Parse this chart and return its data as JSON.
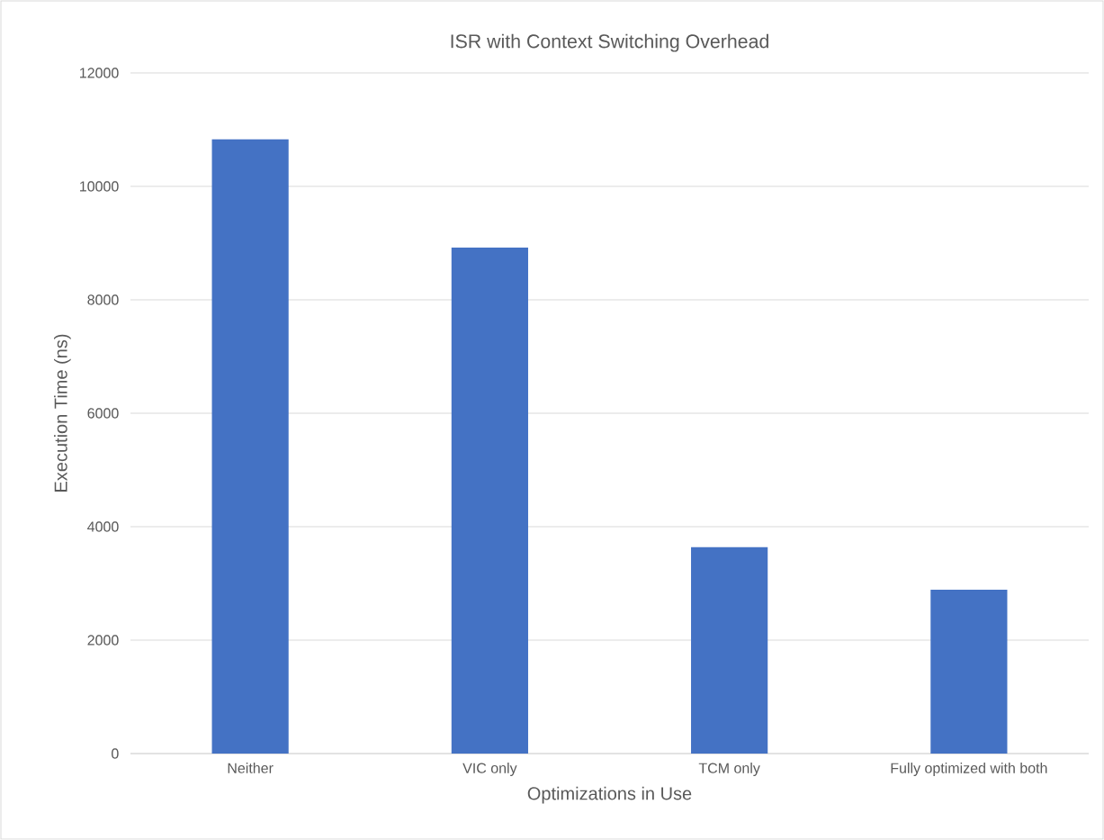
{
  "chart_data": {
    "type": "bar",
    "title": "ISR with Context Switching Overhead",
    "xlabel": "Optimizations in Use",
    "ylabel": "Execution Time (ns)",
    "categories": [
      "Neither",
      "VIC only",
      "TCM only",
      "Fully optimized with both"
    ],
    "values": [
      10830,
      8920,
      3640,
      2890
    ],
    "color": "#4472c4",
    "ylim": [
      0,
      12000
    ],
    "yticks": [
      0,
      2000,
      4000,
      6000,
      8000,
      10000,
      12000
    ],
    "grid": "y"
  }
}
